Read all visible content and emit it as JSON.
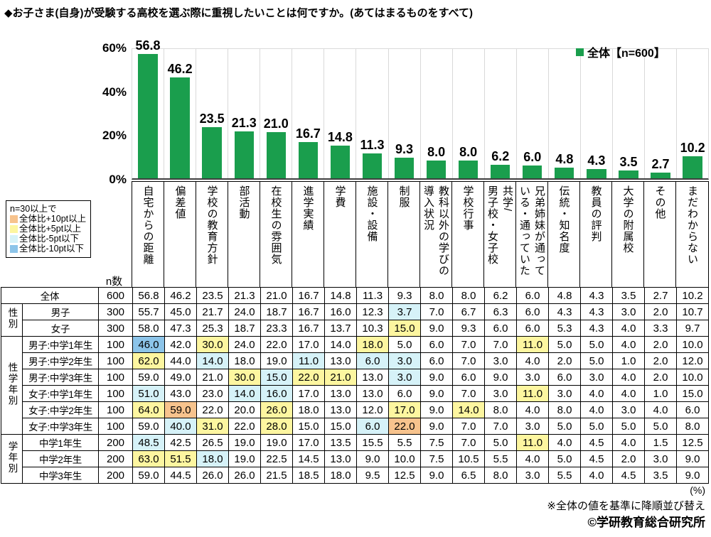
{
  "title": "◆お子さま(自身)が受験する高校を選ぶ際に重視したいことは何ですか。(あてはまるものをすべて)",
  "chart_data": {
    "type": "bar",
    "title": "",
    "categories": [
      "自宅からの距離",
      "偏差値",
      "学校の教育方針",
      "部活動",
      "在校生の雰囲気",
      "進学実績",
      "学費",
      "施設・設備",
      "制服",
      "教科以外の学びの\n導入状況",
      "学校行事",
      "共学/\n男子校・女子校",
      "兄弟姉妹が通って\nいる・通っていた",
      "伝統・知名度",
      "教員の評判",
      "大学の附属校",
      "その他",
      "まだわからない"
    ],
    "values": [
      56.8,
      46.2,
      23.5,
      21.3,
      21.0,
      16.7,
      14.8,
      11.3,
      9.3,
      8.0,
      8.0,
      6.2,
      6.0,
      4.8,
      4.3,
      3.5,
      2.7,
      10.2
    ],
    "series_name": "全体【n=600】",
    "bar_color": "#1A9E4D",
    "xlabel": "",
    "ylabel": "",
    "ylim": [
      0,
      60
    ],
    "yticks": [
      "60%",
      "40%",
      "20%",
      "0%"
    ],
    "grid": "vertical-column-separators",
    "legend_position": "top-right"
  },
  "threshold_legend": {
    "condition": "n=30以上で",
    "items": [
      {
        "key": "plus10",
        "label": "全体比+10pt以上",
        "color": "#F7C38D"
      },
      {
        "key": "plus5",
        "label": "全体比+5pt以上",
        "color": "#FDF6A0"
      },
      {
        "key": "minus5",
        "label": "全体比-5pt以下",
        "color": "#D6F2F8"
      },
      {
        "key": "minus10",
        "label": "全体比-10pt以下",
        "color": "#8CC4E9"
      }
    ]
  },
  "table": {
    "n_header": "n数",
    "rows": [
      {
        "label": "全体",
        "label_colspan": 2,
        "n": 600,
        "values": [
          56.8,
          46.2,
          23.5,
          21.3,
          21.0,
          16.7,
          14.8,
          11.3,
          9.3,
          8.0,
          8.0,
          6.2,
          6.0,
          4.8,
          4.3,
          3.5,
          2.7,
          10.2
        ],
        "highlights": {}
      },
      {
        "group": "性別",
        "group_span": 2,
        "label": "男子",
        "n": 300,
        "values": [
          55.7,
          45.0,
          21.7,
          24.0,
          18.7,
          16.7,
          16.0,
          12.3,
          3.7,
          7.0,
          6.7,
          6.3,
          6.0,
          4.3,
          4.3,
          3.0,
          2.0,
          10.7
        ],
        "highlights": {
          "8": "minus5"
        }
      },
      {
        "label": "女子",
        "n": 300,
        "values": [
          58.0,
          47.3,
          25.3,
          18.7,
          23.3,
          16.7,
          13.7,
          10.3,
          15.0,
          9.0,
          9.3,
          6.0,
          6.0,
          5.3,
          4.3,
          4.0,
          3.3,
          9.7
        ],
        "highlights": {
          "8": "plus5"
        }
      },
      {
        "group": "性学年別",
        "group_span": 6,
        "label": "男子:中学1年生",
        "n": 100,
        "values": [
          46.0,
          42.0,
          30.0,
          24.0,
          22.0,
          17.0,
          14.0,
          18.0,
          5.0,
          6.0,
          7.0,
          7.0,
          11.0,
          5.0,
          5.0,
          4.0,
          2.0,
          10.0
        ],
        "highlights": {
          "0": "minus10",
          "2": "plus5",
          "7": "plus5",
          "12": "plus5"
        }
      },
      {
        "label": "男子:中学2年生",
        "n": 100,
        "values": [
          62.0,
          44.0,
          14.0,
          18.0,
          19.0,
          11.0,
          13.0,
          6.0,
          3.0,
          6.0,
          7.0,
          3.0,
          4.0,
          2.0,
          5.0,
          1.0,
          2.0,
          12.0
        ],
        "highlights": {
          "0": "plus5",
          "2": "minus5",
          "5": "minus5",
          "7": "minus5",
          "8": "minus5"
        }
      },
      {
        "label": "男子:中学3年生",
        "n": 100,
        "values": [
          59.0,
          49.0,
          21.0,
          30.0,
          15.0,
          22.0,
          21.0,
          13.0,
          3.0,
          9.0,
          6.0,
          9.0,
          3.0,
          6.0,
          3.0,
          4.0,
          2.0,
          10.0
        ],
        "highlights": {
          "3": "plus5",
          "4": "minus5",
          "5": "plus5",
          "6": "plus5",
          "8": "minus5"
        }
      },
      {
        "label": "女子:中学1年生",
        "n": 100,
        "values": [
          51.0,
          43.0,
          23.0,
          14.0,
          16.0,
          17.0,
          13.0,
          13.0,
          6.0,
          9.0,
          7.0,
          3.0,
          11.0,
          3.0,
          4.0,
          4.0,
          1.0,
          15.0
        ],
        "highlights": {
          "0": "minus5",
          "3": "minus5",
          "4": "minus5",
          "12": "plus5"
        }
      },
      {
        "label": "女子:中学2年生",
        "n": 100,
        "values": [
          64.0,
          59.0,
          22.0,
          20.0,
          26.0,
          18.0,
          13.0,
          12.0,
          17.0,
          9.0,
          14.0,
          8.0,
          4.0,
          8.0,
          4.0,
          3.0,
          4.0,
          6.0
        ],
        "highlights": {
          "0": "plus5",
          "1": "plus10",
          "4": "plus5",
          "8": "plus5",
          "10": "plus5"
        }
      },
      {
        "label": "女子:中学3年生",
        "n": 100,
        "values": [
          59.0,
          40.0,
          31.0,
          22.0,
          28.0,
          15.0,
          15.0,
          6.0,
          22.0,
          9.0,
          7.0,
          7.0,
          3.0,
          5.0,
          5.0,
          5.0,
          5.0,
          8.0
        ],
        "highlights": {
          "1": "minus5",
          "2": "plus5",
          "4": "plus5",
          "7": "minus5",
          "8": "plus10"
        }
      },
      {
        "group": "学年別",
        "group_span": 3,
        "label": "中学1年生",
        "n": 200,
        "values": [
          48.5,
          42.5,
          26.5,
          19.0,
          19.0,
          17.0,
          13.5,
          15.5,
          5.5,
          7.5,
          7.0,
          5.0,
          11.0,
          4.0,
          4.5,
          4.0,
          1.5,
          12.5
        ],
        "highlights": {
          "0": "minus5",
          "12": "plus5"
        }
      },
      {
        "label": "中学2年生",
        "n": 200,
        "values": [
          63.0,
          51.5,
          18.0,
          19.0,
          22.5,
          14.5,
          13.0,
          9.0,
          10.0,
          7.5,
          10.5,
          5.5,
          4.0,
          5.0,
          4.5,
          2.0,
          3.0,
          9.0
        ],
        "highlights": {
          "0": "plus5",
          "1": "plus5",
          "2": "minus5"
        }
      },
      {
        "label": "中学3年生",
        "n": 200,
        "values": [
          59.0,
          44.5,
          26.0,
          26.0,
          21.5,
          18.5,
          18.0,
          9.5,
          12.5,
          9.0,
          6.5,
          8.0,
          3.0,
          5.5,
          4.0,
          4.5,
          3.5,
          9.0
        ],
        "highlights": {}
      }
    ]
  },
  "footnotes": {
    "unit": "(%)",
    "sort_note": "※全体の値を基準に降順並び替え",
    "copyright": "©学研教育総合研究所"
  }
}
